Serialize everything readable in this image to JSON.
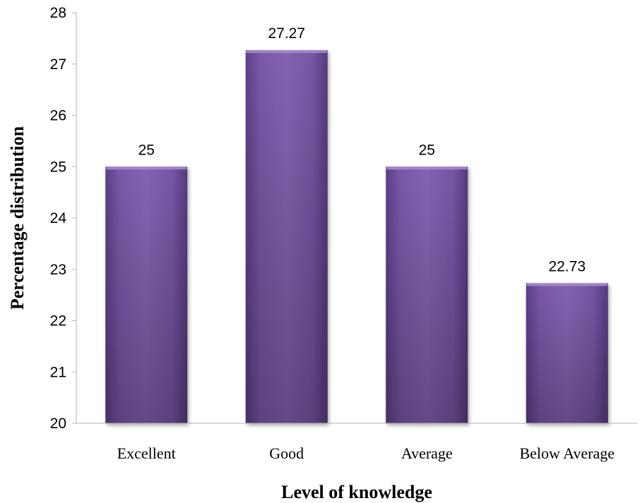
{
  "chart_data": {
    "type": "bar",
    "title": "",
    "xlabel": "Level of knowledge",
    "ylabel": "Percentage distribution",
    "categories": [
      "Excellent",
      "Good",
      "Average",
      "Below Average"
    ],
    "values": [
      25,
      27.27,
      25,
      22.73
    ],
    "data_labels": [
      "25",
      "27.27",
      "25",
      "22.73"
    ],
    "ylim": [
      20,
      28
    ],
    "yticks": [
      20,
      21,
      22,
      23,
      24,
      25,
      26,
      27,
      28
    ],
    "grid": false,
    "legend": "none",
    "bar_color": "#7b5aa6"
  }
}
